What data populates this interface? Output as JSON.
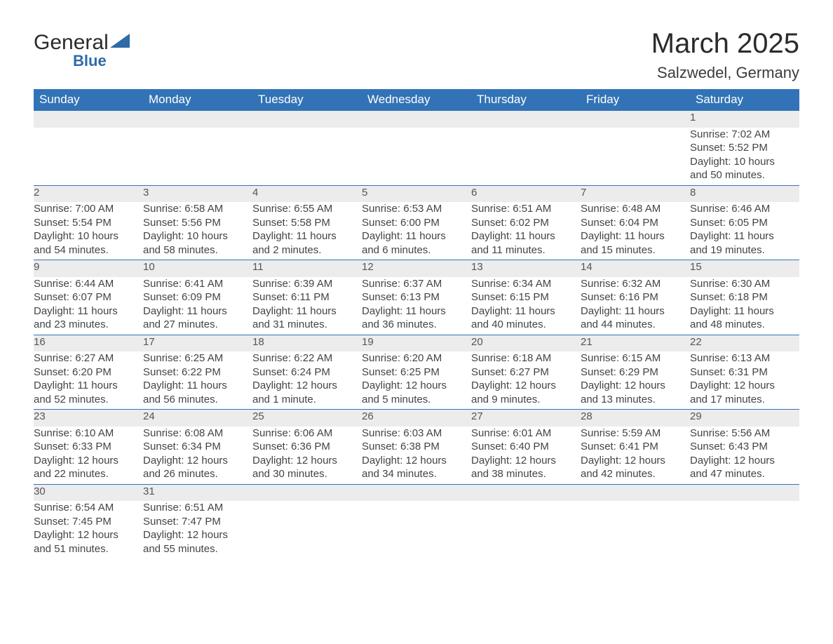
{
  "brand": {
    "name1": "General",
    "name2": "Blue"
  },
  "title": "March 2025",
  "location": "Salzwedel, Germany",
  "colors": {
    "header_bg": "#3273b7",
    "header_text": "#ffffff",
    "row_separator": "#3273b7",
    "daynum_bg": "#ececec",
    "body_text": "#444444",
    "page_bg": "#ffffff"
  },
  "typography": {
    "title_fontsize": 40,
    "location_fontsize": 22,
    "header_fontsize": 17,
    "cell_fontsize": 15
  },
  "layout": {
    "columns": 7,
    "rows": 6
  },
  "weekdays": [
    "Sunday",
    "Monday",
    "Tuesday",
    "Wednesday",
    "Thursday",
    "Friday",
    "Saturday"
  ],
  "weeks": [
    [
      null,
      null,
      null,
      null,
      null,
      null,
      {
        "d": "1",
        "sr": "Sunrise: 7:02 AM",
        "ss": "Sunset: 5:52 PM",
        "dl1": "Daylight: 10 hours",
        "dl2": "and 50 minutes."
      }
    ],
    [
      {
        "d": "2",
        "sr": "Sunrise: 7:00 AM",
        "ss": "Sunset: 5:54 PM",
        "dl1": "Daylight: 10 hours",
        "dl2": "and 54 minutes."
      },
      {
        "d": "3",
        "sr": "Sunrise: 6:58 AM",
        "ss": "Sunset: 5:56 PM",
        "dl1": "Daylight: 10 hours",
        "dl2": "and 58 minutes."
      },
      {
        "d": "4",
        "sr": "Sunrise: 6:55 AM",
        "ss": "Sunset: 5:58 PM",
        "dl1": "Daylight: 11 hours",
        "dl2": "and 2 minutes."
      },
      {
        "d": "5",
        "sr": "Sunrise: 6:53 AM",
        "ss": "Sunset: 6:00 PM",
        "dl1": "Daylight: 11 hours",
        "dl2": "and 6 minutes."
      },
      {
        "d": "6",
        "sr": "Sunrise: 6:51 AM",
        "ss": "Sunset: 6:02 PM",
        "dl1": "Daylight: 11 hours",
        "dl2": "and 11 minutes."
      },
      {
        "d": "7",
        "sr": "Sunrise: 6:48 AM",
        "ss": "Sunset: 6:04 PM",
        "dl1": "Daylight: 11 hours",
        "dl2": "and 15 minutes."
      },
      {
        "d": "8",
        "sr": "Sunrise: 6:46 AM",
        "ss": "Sunset: 6:05 PM",
        "dl1": "Daylight: 11 hours",
        "dl2": "and 19 minutes."
      }
    ],
    [
      {
        "d": "9",
        "sr": "Sunrise: 6:44 AM",
        "ss": "Sunset: 6:07 PM",
        "dl1": "Daylight: 11 hours",
        "dl2": "and 23 minutes."
      },
      {
        "d": "10",
        "sr": "Sunrise: 6:41 AM",
        "ss": "Sunset: 6:09 PM",
        "dl1": "Daylight: 11 hours",
        "dl2": "and 27 minutes."
      },
      {
        "d": "11",
        "sr": "Sunrise: 6:39 AM",
        "ss": "Sunset: 6:11 PM",
        "dl1": "Daylight: 11 hours",
        "dl2": "and 31 minutes."
      },
      {
        "d": "12",
        "sr": "Sunrise: 6:37 AM",
        "ss": "Sunset: 6:13 PM",
        "dl1": "Daylight: 11 hours",
        "dl2": "and 36 minutes."
      },
      {
        "d": "13",
        "sr": "Sunrise: 6:34 AM",
        "ss": "Sunset: 6:15 PM",
        "dl1": "Daylight: 11 hours",
        "dl2": "and 40 minutes."
      },
      {
        "d": "14",
        "sr": "Sunrise: 6:32 AM",
        "ss": "Sunset: 6:16 PM",
        "dl1": "Daylight: 11 hours",
        "dl2": "and 44 minutes."
      },
      {
        "d": "15",
        "sr": "Sunrise: 6:30 AM",
        "ss": "Sunset: 6:18 PM",
        "dl1": "Daylight: 11 hours",
        "dl2": "and 48 minutes."
      }
    ],
    [
      {
        "d": "16",
        "sr": "Sunrise: 6:27 AM",
        "ss": "Sunset: 6:20 PM",
        "dl1": "Daylight: 11 hours",
        "dl2": "and 52 minutes."
      },
      {
        "d": "17",
        "sr": "Sunrise: 6:25 AM",
        "ss": "Sunset: 6:22 PM",
        "dl1": "Daylight: 11 hours",
        "dl2": "and 56 minutes."
      },
      {
        "d": "18",
        "sr": "Sunrise: 6:22 AM",
        "ss": "Sunset: 6:24 PM",
        "dl1": "Daylight: 12 hours",
        "dl2": "and 1 minute."
      },
      {
        "d": "19",
        "sr": "Sunrise: 6:20 AM",
        "ss": "Sunset: 6:25 PM",
        "dl1": "Daylight: 12 hours",
        "dl2": "and 5 minutes."
      },
      {
        "d": "20",
        "sr": "Sunrise: 6:18 AM",
        "ss": "Sunset: 6:27 PM",
        "dl1": "Daylight: 12 hours",
        "dl2": "and 9 minutes."
      },
      {
        "d": "21",
        "sr": "Sunrise: 6:15 AM",
        "ss": "Sunset: 6:29 PM",
        "dl1": "Daylight: 12 hours",
        "dl2": "and 13 minutes."
      },
      {
        "d": "22",
        "sr": "Sunrise: 6:13 AM",
        "ss": "Sunset: 6:31 PM",
        "dl1": "Daylight: 12 hours",
        "dl2": "and 17 minutes."
      }
    ],
    [
      {
        "d": "23",
        "sr": "Sunrise: 6:10 AM",
        "ss": "Sunset: 6:33 PM",
        "dl1": "Daylight: 12 hours",
        "dl2": "and 22 minutes."
      },
      {
        "d": "24",
        "sr": "Sunrise: 6:08 AM",
        "ss": "Sunset: 6:34 PM",
        "dl1": "Daylight: 12 hours",
        "dl2": "and 26 minutes."
      },
      {
        "d": "25",
        "sr": "Sunrise: 6:06 AM",
        "ss": "Sunset: 6:36 PM",
        "dl1": "Daylight: 12 hours",
        "dl2": "and 30 minutes."
      },
      {
        "d": "26",
        "sr": "Sunrise: 6:03 AM",
        "ss": "Sunset: 6:38 PM",
        "dl1": "Daylight: 12 hours",
        "dl2": "and 34 minutes."
      },
      {
        "d": "27",
        "sr": "Sunrise: 6:01 AM",
        "ss": "Sunset: 6:40 PM",
        "dl1": "Daylight: 12 hours",
        "dl2": "and 38 minutes."
      },
      {
        "d": "28",
        "sr": "Sunrise: 5:59 AM",
        "ss": "Sunset: 6:41 PM",
        "dl1": "Daylight: 12 hours",
        "dl2": "and 42 minutes."
      },
      {
        "d": "29",
        "sr": "Sunrise: 5:56 AM",
        "ss": "Sunset: 6:43 PM",
        "dl1": "Daylight: 12 hours",
        "dl2": "and 47 minutes."
      }
    ],
    [
      {
        "d": "30",
        "sr": "Sunrise: 6:54 AM",
        "ss": "Sunset: 7:45 PM",
        "dl1": "Daylight: 12 hours",
        "dl2": "and 51 minutes."
      },
      {
        "d": "31",
        "sr": "Sunrise: 6:51 AM",
        "ss": "Sunset: 7:47 PM",
        "dl1": "Daylight: 12 hours",
        "dl2": "and 55 minutes."
      },
      null,
      null,
      null,
      null,
      null
    ]
  ]
}
